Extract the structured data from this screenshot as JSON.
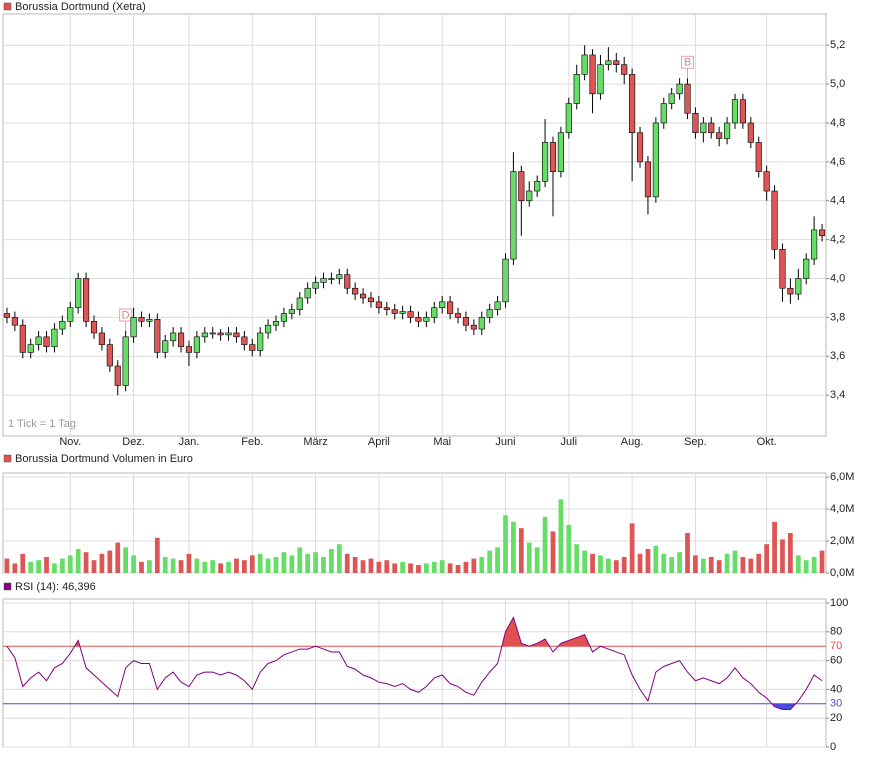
{
  "chart_data": [
    {
      "type": "candlestick",
      "title": "Borussia Dortmund (Xetra)",
      "annotation": "1 Tick = 1 Tag",
      "legend_color": "#e05050",
      "up_color": "#66dd66",
      "down_color": "#dd5555",
      "grid": true,
      "categories": [
        null,
        null,
        null,
        null,
        null,
        null,
        null,
        null,
        "Nov.",
        null,
        null,
        null,
        null,
        null,
        null,
        null,
        "Dez.",
        null,
        null,
        null,
        null,
        null,
        null,
        "Jan.",
        null,
        null,
        null,
        null,
        null,
        null,
        null,
        "Feb.",
        null,
        null,
        null,
        null,
        null,
        null,
        null,
        "März",
        null,
        null,
        null,
        null,
        null,
        null,
        null,
        "April",
        null,
        null,
        null,
        null,
        null,
        null,
        null,
        "Mai",
        null,
        null,
        null,
        null,
        null,
        null,
        null,
        "Juni",
        null,
        null,
        null,
        null,
        null,
        null,
        null,
        "Juli",
        null,
        null,
        null,
        null,
        null,
        null,
        null,
        "Aug.",
        null,
        null,
        null,
        null,
        null,
        null,
        null,
        "Sep.",
        null,
        null,
        null,
        null,
        null,
        null,
        null,
        null,
        "Okt.",
        null,
        null,
        null,
        null,
        null,
        null,
        null
      ],
      "events": [
        null,
        null,
        null,
        null,
        null,
        null,
        null,
        null,
        null,
        null,
        null,
        null,
        null,
        null,
        null,
        "D",
        null,
        null,
        null,
        null,
        null,
        null,
        null,
        null,
        null,
        null,
        null,
        null,
        null,
        null,
        null,
        null,
        null,
        null,
        null,
        null,
        null,
        null,
        null,
        null,
        null,
        null,
        null,
        null,
        null,
        null,
        null,
        null,
        null,
        null,
        null,
        null,
        null,
        null,
        null,
        null,
        null,
        null,
        null,
        null,
        null,
        null,
        null,
        null,
        null,
        null,
        null,
        null,
        null,
        null,
        null,
        null,
        null,
        null,
        null,
        null,
        null,
        null,
        null,
        null,
        null,
        null,
        null,
        null,
        null,
        null,
        "B",
        null,
        null,
        null,
        null,
        null,
        null,
        null,
        null,
        null,
        null,
        null,
        null,
        null,
        null,
        null,
        null,
        null
      ],
      "open": [
        3.82,
        3.8,
        3.76,
        3.62,
        3.66,
        3.7,
        3.65,
        3.74,
        3.78,
        3.85,
        4.0,
        3.78,
        3.72,
        3.66,
        3.55,
        3.45,
        3.7,
        3.8,
        3.78,
        3.79,
        3.62,
        3.68,
        3.72,
        3.65,
        3.62,
        3.7,
        3.72,
        3.72,
        3.71,
        3.72,
        3.7,
        3.66,
        3.63,
        3.72,
        3.76,
        3.78,
        3.82,
        3.84,
        3.9,
        3.95,
        3.98,
        4.0,
        4.0,
        4.02,
        3.95,
        3.92,
        3.9,
        3.88,
        3.85,
        3.84,
        3.82,
        3.83,
        3.8,
        3.78,
        3.8,
        3.85,
        3.88,
        3.82,
        3.8,
        3.76,
        3.74,
        3.8,
        3.84,
        3.88,
        4.1,
        4.55,
        4.4,
        4.45,
        4.5,
        4.7,
        4.55,
        4.75,
        4.9,
        5.05,
        5.15,
        4.95,
        5.1,
        5.12,
        5.1,
        5.05,
        4.75,
        4.6,
        4.42,
        4.8,
        4.9,
        4.95,
        5.0,
        4.85,
        4.75,
        4.8,
        4.75,
        4.72,
        4.8,
        4.92,
        4.8,
        4.7,
        4.55,
        4.45,
        4.15,
        3.95,
        3.92,
        4.0,
        4.1,
        4.25
      ],
      "high": [
        3.85,
        3.83,
        3.79,
        3.69,
        3.73,
        3.73,
        3.77,
        3.81,
        3.88,
        4.03,
        4.03,
        3.81,
        3.75,
        3.69,
        3.58,
        3.73,
        3.85,
        3.83,
        3.82,
        3.82,
        3.71,
        3.75,
        3.75,
        3.68,
        3.73,
        3.75,
        3.75,
        3.74,
        3.75,
        3.75,
        3.73,
        3.69,
        3.75,
        3.79,
        3.81,
        3.85,
        3.87,
        3.93,
        3.98,
        4.01,
        4.03,
        4.03,
        4.05,
        4.05,
        3.98,
        3.95,
        3.93,
        3.91,
        3.88,
        3.87,
        3.86,
        3.86,
        3.83,
        3.83,
        3.88,
        3.91,
        3.91,
        3.85,
        3.83,
        3.79,
        3.83,
        3.87,
        3.91,
        4.13,
        4.65,
        4.58,
        4.5,
        4.53,
        4.82,
        4.73,
        4.78,
        4.93,
        5.1,
        5.2,
        5.18,
        5.15,
        5.19,
        5.16,
        5.14,
        5.08,
        4.78,
        4.63,
        4.83,
        4.93,
        4.98,
        5.03,
        5.03,
        4.88,
        4.83,
        4.83,
        4.78,
        4.83,
        4.95,
        4.95,
        4.83,
        4.73,
        4.58,
        4.48,
        4.18,
        4.0,
        4.05,
        4.13,
        4.32,
        4.28
      ],
      "low": [
        3.77,
        3.73,
        3.59,
        3.59,
        3.63,
        3.62,
        3.62,
        3.71,
        3.75,
        3.82,
        3.75,
        3.69,
        3.63,
        3.52,
        3.4,
        3.42,
        3.67,
        3.75,
        3.75,
        3.59,
        3.59,
        3.65,
        3.62,
        3.55,
        3.59,
        3.67,
        3.69,
        3.68,
        3.68,
        3.67,
        3.63,
        3.6,
        3.6,
        3.69,
        3.73,
        3.75,
        3.79,
        3.81,
        3.87,
        3.92,
        3.95,
        3.97,
        3.97,
        3.92,
        3.89,
        3.87,
        3.85,
        3.82,
        3.81,
        3.79,
        3.79,
        3.77,
        3.75,
        3.75,
        3.77,
        3.82,
        3.79,
        3.77,
        3.73,
        3.71,
        3.71,
        3.77,
        3.81,
        3.85,
        4.07,
        4.22,
        4.37,
        4.42,
        4.47,
        4.32,
        4.52,
        4.72,
        4.87,
        5.02,
        4.85,
        4.92,
        5.07,
        5.06,
        5.0,
        4.5,
        4.57,
        4.33,
        4.39,
        4.77,
        4.87,
        4.92,
        4.82,
        4.72,
        4.7,
        4.72,
        4.68,
        4.69,
        4.77,
        4.77,
        4.67,
        4.52,
        4.4,
        4.1,
        3.88,
        3.87,
        3.89,
        3.97,
        4.07,
        4.19
      ],
      "close": [
        3.8,
        3.76,
        3.62,
        3.66,
        3.7,
        3.65,
        3.74,
        3.78,
        3.85,
        4.0,
        3.78,
        3.72,
        3.66,
        3.55,
        3.45,
        3.7,
        3.8,
        3.78,
        3.79,
        3.62,
        3.68,
        3.72,
        3.65,
        3.62,
        3.7,
        3.72,
        3.72,
        3.71,
        3.72,
        3.7,
        3.66,
        3.63,
        3.72,
        3.76,
        3.78,
        3.82,
        3.84,
        3.9,
        3.95,
        3.98,
        4.0,
        4.0,
        4.02,
        3.95,
        3.92,
        3.9,
        3.88,
        3.85,
        3.84,
        3.82,
        3.83,
        3.8,
        3.78,
        3.8,
        3.85,
        3.88,
        3.82,
        3.8,
        3.76,
        3.74,
        3.8,
        3.84,
        3.88,
        4.1,
        4.55,
        4.4,
        4.45,
        4.5,
        4.7,
        4.55,
        4.75,
        4.9,
        5.05,
        5.15,
        4.95,
        5.1,
        5.12,
        5.1,
        5.05,
        4.75,
        4.6,
        4.42,
        4.8,
        4.9,
        4.95,
        5.0,
        4.85,
        4.75,
        4.8,
        4.75,
        4.72,
        4.8,
        4.92,
        4.8,
        4.7,
        4.55,
        4.45,
        4.15,
        3.95,
        3.92,
        4.0,
        4.1,
        4.25,
        4.22
      ],
      "ylim": [
        3.19,
        5.34
      ],
      "yticks": [
        {
          "value": 3.4,
          "label": "3,4"
        },
        {
          "value": 3.6,
          "label": "3,6"
        },
        {
          "value": 3.8,
          "label": "3,8"
        },
        {
          "value": 4.0,
          "label": "4,0"
        },
        {
          "value": 4.2,
          "label": "4,2"
        },
        {
          "value": 4.4,
          "label": "4,4"
        },
        {
          "value": 4.6,
          "label": "4,6"
        },
        {
          "value": 4.8,
          "label": "4,8"
        },
        {
          "value": 5.0,
          "label": "5,0"
        },
        {
          "value": 5.2,
          "label": "5,2"
        }
      ]
    },
    {
      "type": "bar",
      "title": "Borussia Dortmund Volumen in Euro",
      "legend_color": "#e05050",
      "grid": true,
      "values": [
        0.9,
        0.6,
        1.2,
        0.7,
        0.8,
        1.0,
        0.6,
        0.9,
        1.1,
        1.5,
        1.3,
        0.8,
        1.2,
        1.4,
        1.9,
        1.6,
        1.1,
        0.7,
        0.8,
        2.2,
        1.0,
        0.9,
        0.8,
        1.2,
        0.9,
        0.7,
        0.8,
        0.6,
        0.7,
        0.9,
        0.8,
        1.1,
        1.2,
        0.9,
        1.0,
        1.3,
        1.1,
        1.6,
        1.2,
        1.3,
        1.0,
        1.5,
        1.8,
        1.2,
        1.0,
        0.8,
        0.9,
        0.7,
        0.8,
        0.6,
        0.7,
        0.6,
        0.5,
        0.6,
        0.7,
        0.8,
        0.6,
        0.5,
        0.7,
        0.9,
        1.0,
        1.4,
        1.6,
        3.6,
        3.2,
        2.8,
        1.9,
        1.6,
        3.5,
        2.6,
        4.6,
        3.0,
        1.8,
        1.4,
        1.2,
        1.1,
        0.9,
        0.8,
        1.0,
        3.1,
        1.2,
        1.5,
        1.7,
        1.2,
        1.0,
        1.3,
        2.5,
        1.1,
        0.9,
        1.0,
        0.8,
        1.2,
        1.4,
        1.0,
        0.9,
        1.2,
        1.8,
        3.2,
        2.1,
        2.5,
        1.1,
        0.8,
        1.0,
        1.4
      ],
      "ylim": [
        0,
        6
      ],
      "yticks": [
        {
          "value": 0,
          "label": "0,0M"
        },
        {
          "value": 2,
          "label": "2,0M"
        },
        {
          "value": 4,
          "label": "4,0M"
        },
        {
          "value": 6,
          "label": "6,0M"
        }
      ]
    },
    {
      "type": "line",
      "title": "RSI (14): 46,396",
      "legend_color": "#800080",
      "color": "#800080",
      "grid": true,
      "values": [
        70,
        62,
        42,
        48,
        52,
        46,
        55,
        58,
        65,
        74,
        55,
        50,
        45,
        40,
        35,
        55,
        60,
        58,
        58,
        40,
        48,
        52,
        45,
        42,
        50,
        52,
        52,
        50,
        52,
        50,
        46,
        40,
        52,
        58,
        60,
        64,
        66,
        68,
        68,
        70,
        68,
        66,
        66,
        56,
        54,
        50,
        48,
        45,
        44,
        42,
        44,
        40,
        38,
        42,
        48,
        50,
        44,
        42,
        38,
        36,
        45,
        52,
        58,
        80,
        90,
        72,
        70,
        72,
        75,
        66,
        72,
        74,
        76,
        78,
        66,
        70,
        68,
        66,
        64,
        50,
        40,
        32,
        52,
        56,
        58,
        60,
        52,
        46,
        48,
        46,
        44,
        48,
        55,
        48,
        44,
        38,
        34,
        28,
        26,
        26,
        32,
        40,
        50,
        46
      ],
      "levels": [
        {
          "value": 70,
          "color": "#e05050"
        },
        {
          "value": 30,
          "color": "#4a4ae0"
        }
      ],
      "ylim": [
        0,
        100
      ],
      "yticks": [
        0,
        20,
        40,
        60,
        80,
        100
      ]
    }
  ]
}
